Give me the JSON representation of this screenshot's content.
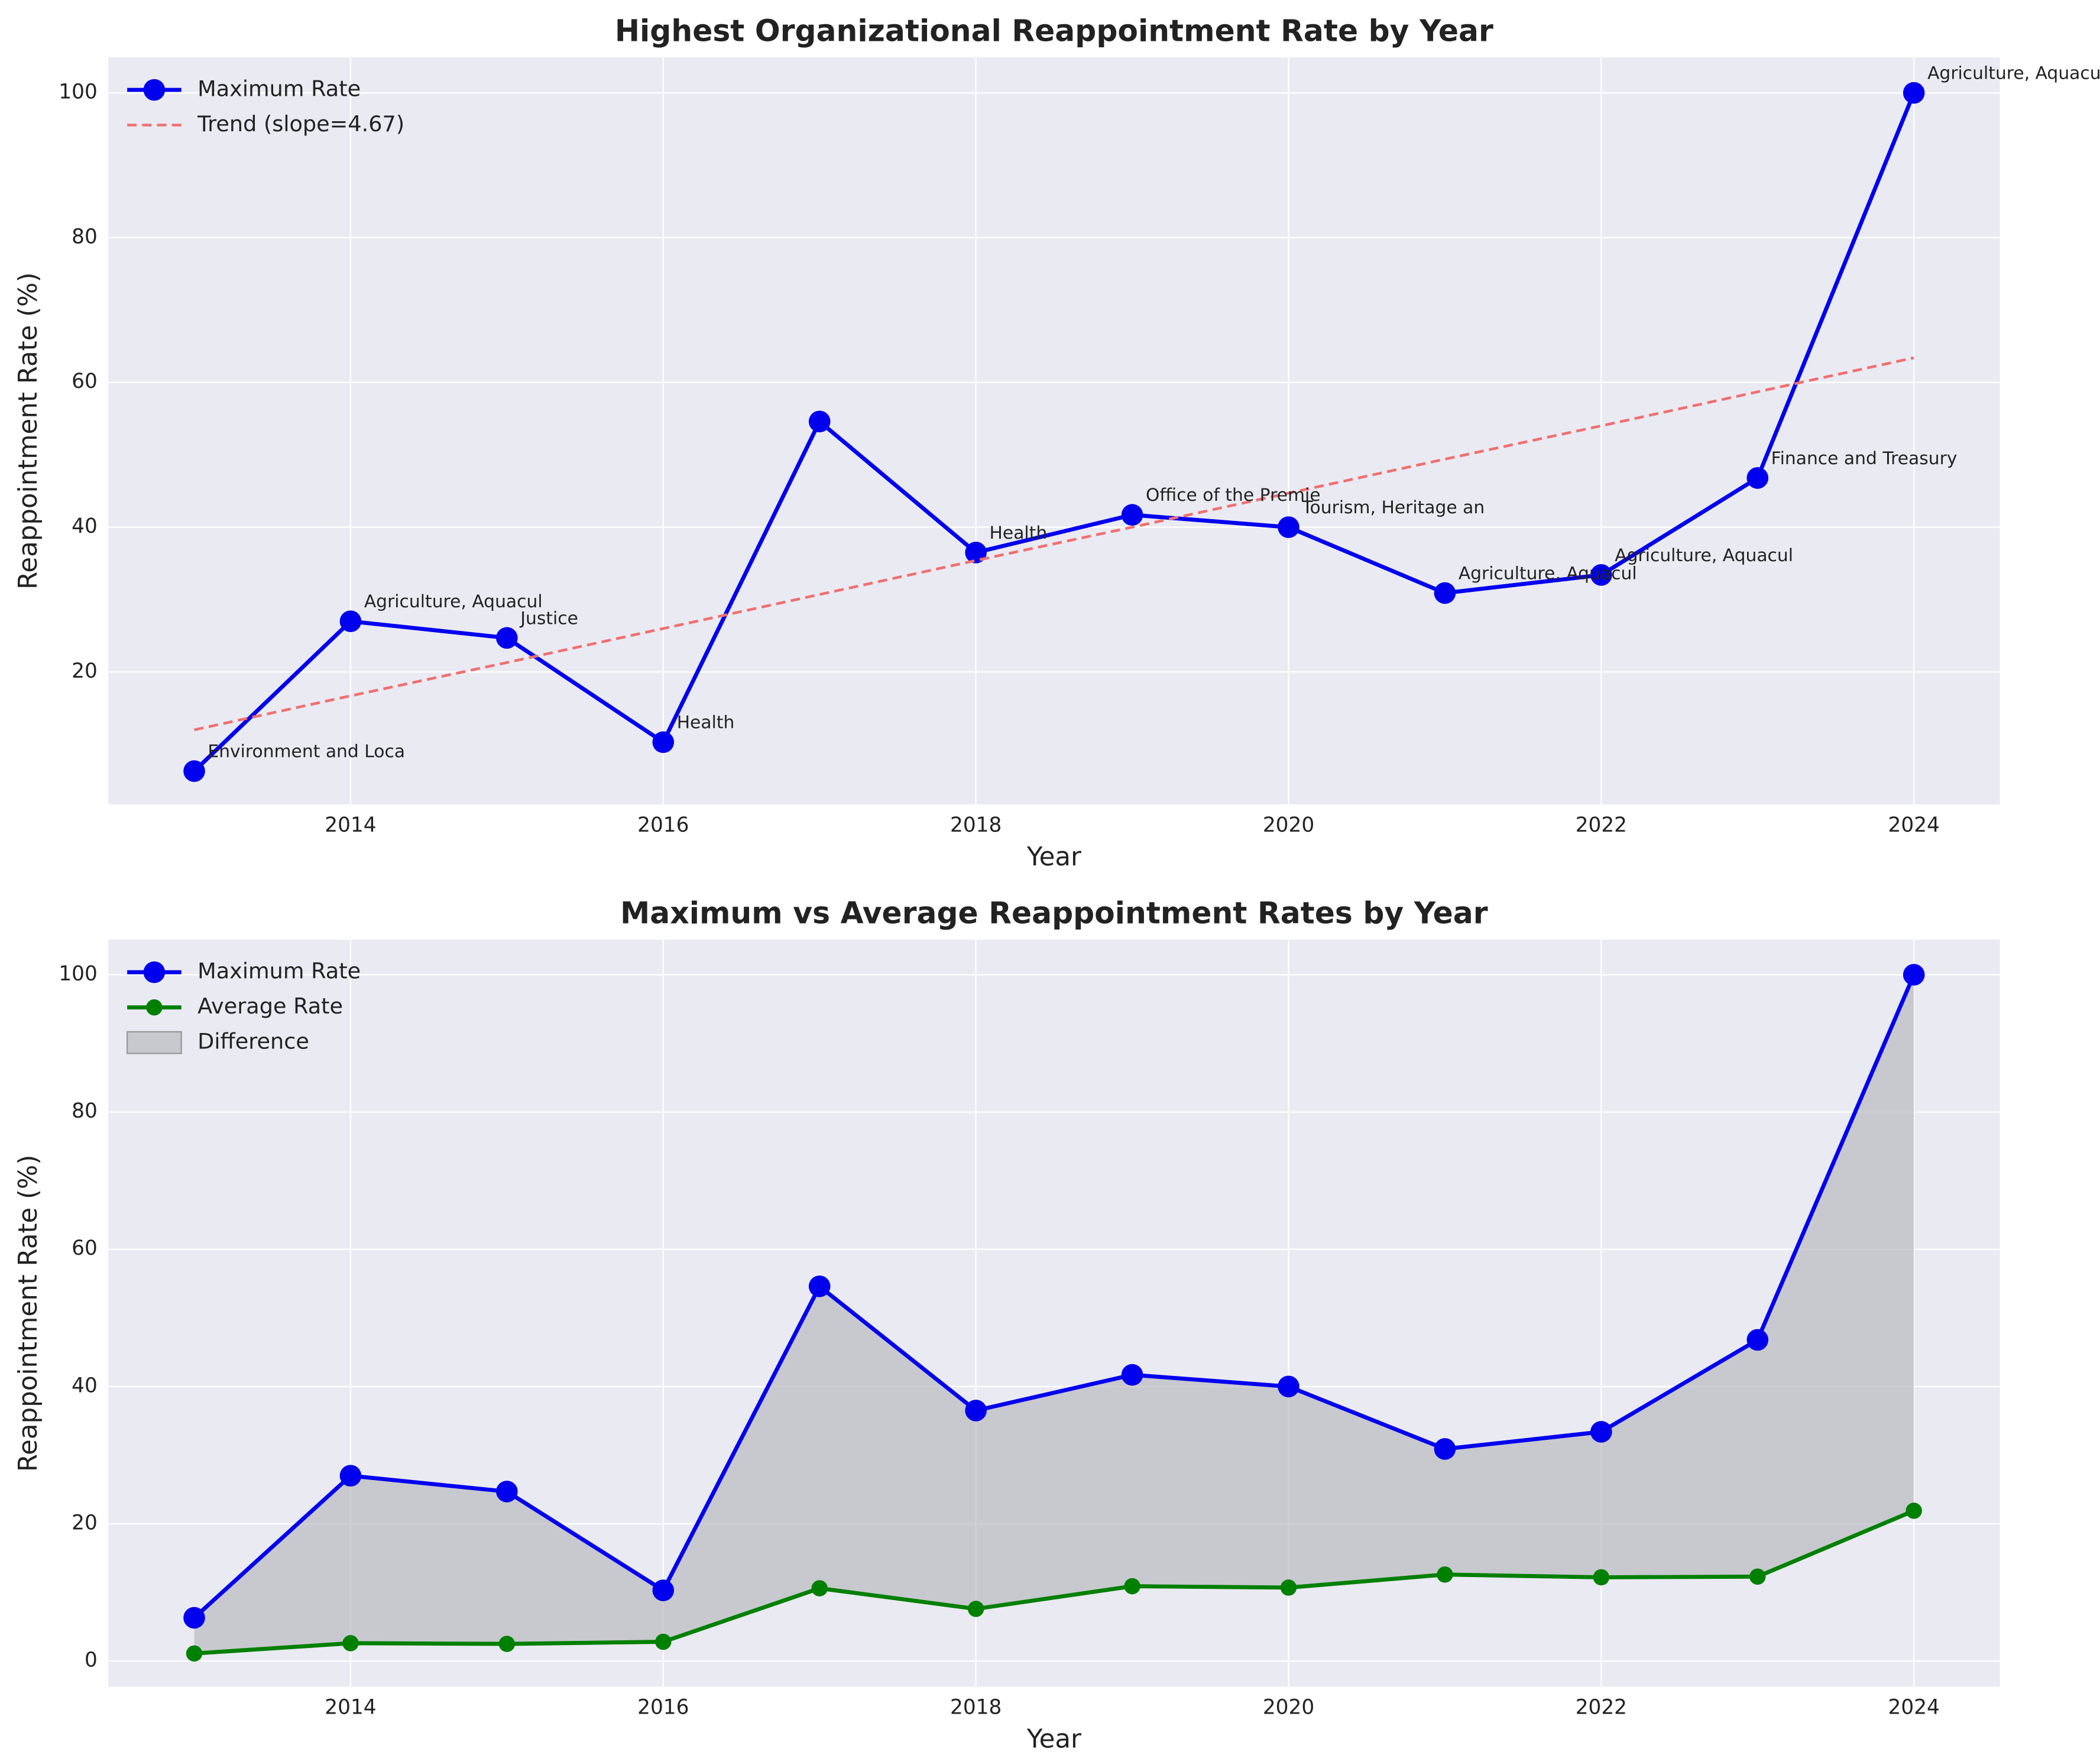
{
  "chart_data": [
    {
      "type": "line",
      "title": "Highest Organizational Reappointment Rate by Year",
      "xlabel": "Year",
      "ylabel": "Reappointment Rate (%)",
      "x": [
        2013,
        2014,
        2015,
        2016,
        2017,
        2018,
        2019,
        2020,
        2021,
        2022,
        2023,
        2024
      ],
      "series": [
        {
          "name": "Maximum Rate",
          "color": "#0000ee",
          "marker": true,
          "values": [
            6.3,
            27.0,
            24.7,
            10.3,
            54.6,
            36.5,
            41.7,
            40.0,
            30.9,
            33.4,
            46.8,
            100.0
          ]
        },
        {
          "name": "Trend (slope=4.67)",
          "color": "#f07070",
          "dash": true,
          "values": [
            12.0,
            16.7,
            21.3,
            26.0,
            30.7,
            35.4,
            40.0,
            44.7,
            49.4,
            54.0,
            58.7,
            63.4
          ]
        }
      ],
      "annotations": [
        "Environment and Loca",
        "Agriculture, Aquacul",
        "Justice",
        "Health",
        null,
        "Health",
        "Office of the Premie",
        "Tourism, Heritage an",
        "Agriculture, Aquacul",
        "Agriculture, Aquacul",
        "Finance and Treasury",
        "Agriculture, Aquacul"
      ],
      "xlim": [
        2012.45,
        2024.55
      ],
      "xticks": [
        2014,
        2016,
        2018,
        2020,
        2022,
        2024
      ],
      "ylim": [
        1.7,
        104.9
      ],
      "yticks": [
        20,
        40,
        60,
        80,
        100
      ],
      "grid": true,
      "legend": "upper left"
    },
    {
      "type": "line",
      "title": "Maximum vs Average Reappointment Rates by Year",
      "xlabel": "Year",
      "ylabel": "Reappointment Rate (%)",
      "x": [
        2013,
        2014,
        2015,
        2016,
        2017,
        2018,
        2019,
        2020,
        2021,
        2022,
        2023,
        2024
      ],
      "series": [
        {
          "name": "Maximum Rate",
          "color": "#0000ee",
          "marker": true,
          "values": [
            6.3,
            27.0,
            24.7,
            10.3,
            54.6,
            36.5,
            41.7,
            40.0,
            30.9,
            33.4,
            46.8,
            100.0
          ]
        },
        {
          "name": "Average Rate",
          "color": "#008000",
          "marker": true,
          "small": true,
          "values": [
            1.1,
            2.6,
            2.5,
            2.8,
            10.6,
            7.6,
            10.9,
            10.7,
            12.6,
            12.2,
            12.3,
            21.9
          ]
        }
      ],
      "fill": {
        "name": "Difference",
        "color": "#b0b0b8"
      },
      "xlim": [
        2012.45,
        2024.55
      ],
      "xticks": [
        2014,
        2016,
        2018,
        2020,
        2022,
        2024
      ],
      "ylim": [
        -3.75,
        105.1
      ],
      "yticks": [
        0,
        20,
        40,
        60,
        80,
        100
      ],
      "grid": true,
      "legend": "upper left"
    }
  ]
}
